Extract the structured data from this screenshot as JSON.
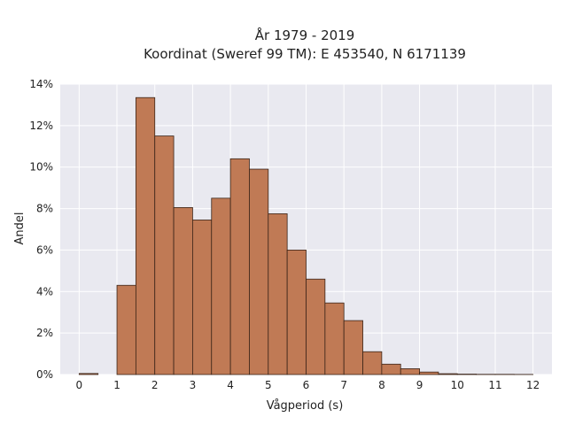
{
  "chart_data": {
    "type": "bar",
    "title_line1": "År 1979 - 2019",
    "title_line2": "Koordinat (Sweref 99 TM): E 453540, N 6171139",
    "xlabel": "Vågperiod (s)",
    "ylabel": "Andel",
    "xlim": [
      -0.5,
      12.5
    ],
    "ylim": [
      0,
      0.14
    ],
    "xticks": [
      0,
      1,
      2,
      3,
      4,
      5,
      6,
      7,
      8,
      9,
      10,
      11,
      12
    ],
    "yticks": [
      {
        "value": 0,
        "label": "0%"
      },
      {
        "value": 0.02,
        "label": "2%"
      },
      {
        "value": 0.04,
        "label": "4%"
      },
      {
        "value": 0.06,
        "label": "6%"
      },
      {
        "value": 0.08,
        "label": "8%"
      },
      {
        "value": 0.1,
        "label": "10%"
      },
      {
        "value": 0.12,
        "label": "12%"
      },
      {
        "value": 0.14,
        "label": "14%"
      }
    ],
    "bin_width": 0.5,
    "bins": [
      {
        "start": 0.0,
        "value": 0.0005
      },
      {
        "start": 0.5,
        "value": 0.0
      },
      {
        "start": 1.0,
        "value": 0.043
      },
      {
        "start": 1.5,
        "value": 0.1335
      },
      {
        "start": 2.0,
        "value": 0.115
      },
      {
        "start": 2.5,
        "value": 0.0805
      },
      {
        "start": 3.0,
        "value": 0.0745
      },
      {
        "start": 3.5,
        "value": 0.085
      },
      {
        "start": 4.0,
        "value": 0.104
      },
      {
        "start": 4.5,
        "value": 0.099
      },
      {
        "start": 5.0,
        "value": 0.0775
      },
      {
        "start": 5.5,
        "value": 0.06
      },
      {
        "start": 6.0,
        "value": 0.046
      },
      {
        "start": 6.5,
        "value": 0.0345
      },
      {
        "start": 7.0,
        "value": 0.026
      },
      {
        "start": 7.5,
        "value": 0.011
      },
      {
        "start": 8.0,
        "value": 0.005
      },
      {
        "start": 8.5,
        "value": 0.0028
      },
      {
        "start": 9.0,
        "value": 0.0012
      },
      {
        "start": 9.5,
        "value": 0.0004
      },
      {
        "start": 10.0,
        "value": 0.0002
      },
      {
        "start": 10.5,
        "value": 0.0001
      },
      {
        "start": 11.0,
        "value": 0.0001
      },
      {
        "start": 11.5,
        "value": 5e-05
      }
    ],
    "bar_color": "#c07a55",
    "bar_edge_color": "#3a2418",
    "plot_background": "#e9e9f0",
    "grid": true,
    "grid_color": "#ffffff",
    "legend": false
  }
}
